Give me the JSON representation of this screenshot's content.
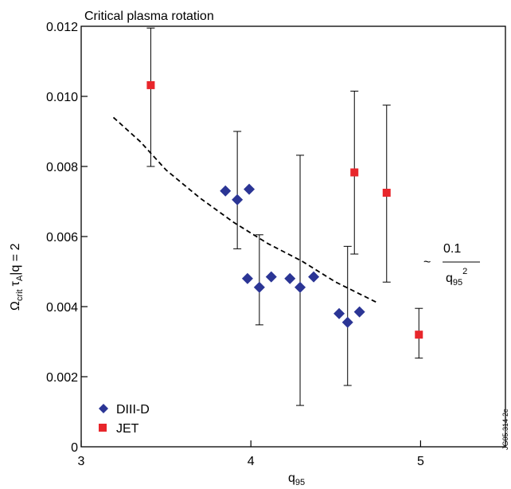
{
  "chart_data": {
    "type": "scatter",
    "title": "Critical plasma rotation",
    "xlabel": {
      "main": "q",
      "sub": "95"
    },
    "ylabel": {
      "omega": "Ω",
      "omega_sub": "crit",
      "tau": "τ",
      "tau_sub": "A",
      "rest": "|q = 2"
    },
    "xlim": [
      3,
      5.5
    ],
    "ylim": [
      0,
      0.012
    ],
    "x_ticks": [
      3,
      4,
      5
    ],
    "x_tick_labels": [
      "3",
      "4",
      "5"
    ],
    "y_ticks": [
      0,
      0.002,
      0.004,
      0.006,
      0.008,
      0.01,
      0.012
    ],
    "y_tick_labels": [
      "0",
      "0.002",
      "0.004",
      "0.006",
      "0.008",
      "0.010",
      "0.012"
    ],
    "grid": false,
    "legend_position": "bottom-left",
    "series": [
      {
        "name": "DIII-D",
        "marker": "diamond",
        "color": "#2b3595",
        "points": [
          {
            "x": 3.85,
            "y": 0.0073
          },
          {
            "x": 3.92,
            "y": 0.00705,
            "err_low": 0.00565,
            "err_high": 0.009
          },
          {
            "x": 3.99,
            "y": 0.00735
          },
          {
            "x": 3.98,
            "y": 0.0048
          },
          {
            "x": 4.05,
            "y": 0.00455,
            "err_low": 0.00348,
            "err_high": 0.00605
          },
          {
            "x": 4.12,
            "y": 0.00485
          },
          {
            "x": 4.23,
            "y": 0.0048
          },
          {
            "x": 4.29,
            "y": 0.00455,
            "err_low": 0.00118,
            "err_high": 0.00832
          },
          {
            "x": 4.37,
            "y": 0.00485
          },
          {
            "x": 4.52,
            "y": 0.0038
          },
          {
            "x": 4.57,
            "y": 0.00355,
            "err_low": 0.00175,
            "err_high": 0.00572
          },
          {
            "x": 4.64,
            "y": 0.00385
          }
        ]
      },
      {
        "name": "JET",
        "marker": "square",
        "color": "#e8262b",
        "points": [
          {
            "x": 3.41,
            "y": 0.01032,
            "err_low": 0.008,
            "err_high": 0.01195
          },
          {
            "x": 4.61,
            "y": 0.00783,
            "err_low": 0.0055,
            "err_high": 0.01015
          },
          {
            "x": 4.8,
            "y": 0.00725,
            "err_low": 0.0047,
            "err_high": 0.00975
          },
          {
            "x": 4.99,
            "y": 0.0032,
            "err_low": 0.00253,
            "err_high": 0.00395
          }
        ]
      }
    ],
    "fit": {
      "style": "dashed",
      "label_prefix": "~",
      "label_numerator": "0.1",
      "label_denominator_main": "q",
      "label_denominator_sub": "95",
      "label_denominator_sup": "2",
      "x": [
        3.19,
        3.35,
        3.5,
        3.7,
        3.9,
        4.1,
        4.3,
        4.5,
        4.75
      ],
      "y": [
        0.0094,
        0.0087,
        0.0079,
        0.0071,
        0.0064,
        0.0058,
        0.0053,
        0.0047,
        0.0041
      ]
    }
  },
  "watermark": "JG05.314-2c"
}
